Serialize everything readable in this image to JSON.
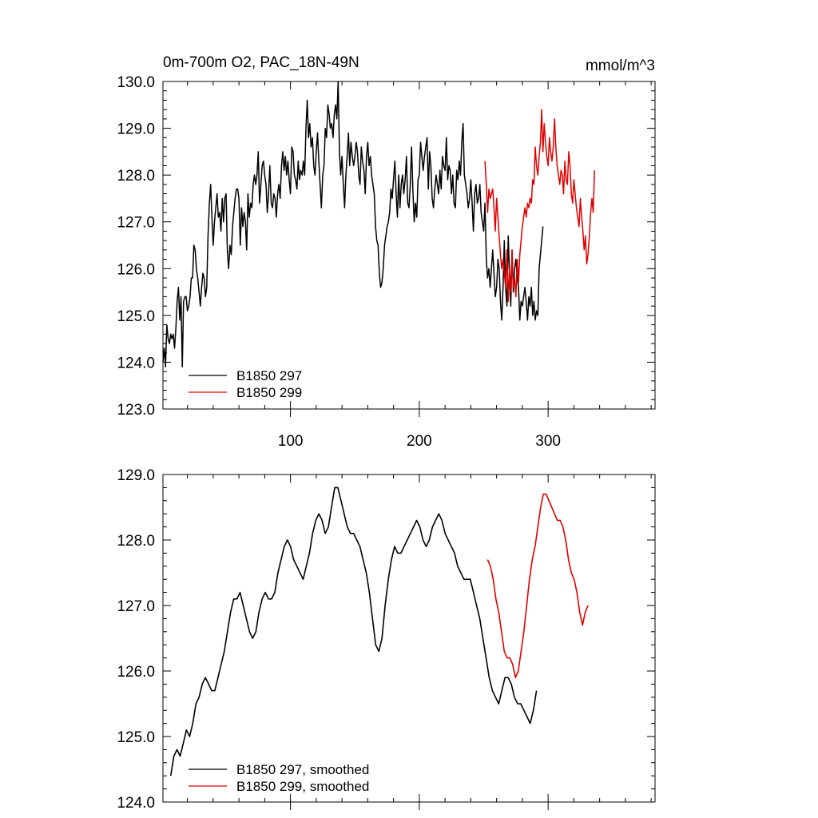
{
  "title": "0m-700m O2, PAC_18N-49N",
  "units": "mmol/m^3",
  "chart_data": [
    {
      "name": "top-panel",
      "type": "line",
      "title": "0m-700m O2, PAC_18N-49N",
      "units_label": "mmol/m^3",
      "xlim": [
        1,
        383
      ],
      "ylim": [
        123,
        130
      ],
      "x_tick_labels": [
        "100",
        "200",
        "300"
      ],
      "y_tick_labels": [
        "123.0",
        "124.0",
        "125.0",
        "126.0",
        "127.0",
        "128.0",
        "129.0",
        "130.0"
      ],
      "series": [
        {
          "name": "B1850 297",
          "color": "#000000",
          "x_start": 1,
          "values": [
            124.0,
            124.3,
            123.9,
            124.8,
            124.5,
            124.4,
            124.6,
            124.5,
            124.6,
            124.3,
            124.7,
            125.3,
            125.6,
            124.9,
            125.4,
            123.9,
            125.3,
            125.4,
            125.4,
            125.1,
            125.2,
            125.4,
            125.8,
            125.8,
            126.5,
            126.4,
            126.0,
            125.8,
            125.5,
            125.2,
            125.6,
            125.9,
            125.8,
            125.4,
            125.6,
            126.7,
            127.4,
            127.8,
            127.1,
            126.5,
            127.0,
            127.3,
            127.6,
            127.1,
            127.2,
            126.8,
            127.5,
            127.0,
            127.5,
            127.6,
            126.4,
            126.0,
            126.5,
            126.3,
            126.9,
            127.2,
            127.5,
            127.7,
            127.7,
            127.5,
            126.5,
            127.3,
            126.9,
            127.2,
            127.0,
            126.4,
            127.6,
            127.1,
            127.4,
            127.3,
            127.8,
            128.0,
            127.8,
            128.0,
            128.5,
            127.4,
            127.8,
            128.2,
            128.3,
            128.0,
            127.8,
            127.2,
            127.6,
            128.2,
            127.4,
            127.3,
            127.6,
            127.5,
            127.1,
            127.6,
            127.8,
            127.5,
            128.2,
            128.5,
            128.1,
            128.4,
            128.0,
            128.3,
            127.9,
            127.6,
            128.6,
            128.5,
            128.0,
            127.9,
            127.7,
            128.3,
            127.9,
            128.1,
            128.0,
            128.3,
            128.0,
            129.0,
            129.6,
            128.8,
            129.1,
            128.6,
            128.8,
            128.2,
            128.0,
            128.5,
            128.9,
            128.3,
            127.8,
            127.3,
            128.0,
            128.2,
            129.0,
            128.8,
            129.5,
            129.3,
            129.0,
            129.1,
            128.8,
            129.3,
            129.5,
            129.2,
            130.0,
            128.5,
            128.0,
            128.4,
            127.8,
            127.3,
            128.0,
            128.4,
            128.9,
            128.2,
            128.7,
            128.4,
            128.2,
            128.4,
            128.7,
            128.5,
            128.0,
            127.8,
            128.6,
            128.3,
            128.1,
            127.6,
            128.4,
            128.7,
            128.2,
            128.4,
            128.0,
            127.8,
            127.6,
            126.9,
            126.6,
            126.5,
            125.9,
            125.6,
            125.7,
            126.0,
            126.5,
            126.7,
            126.9,
            127.0,
            127.2,
            127.7,
            127.5,
            127.9,
            128.3,
            127.6,
            127.1,
            128.0,
            127.3,
            127.8,
            128.0,
            127.6,
            127.9,
            128.4,
            127.4,
            127.3,
            127.8,
            128.6,
            127.7,
            127.0,
            127.4,
            127.1,
            127.9,
            128.0,
            128.7,
            128.4,
            128.1,
            128.4,
            128.6,
            128.8,
            127.7,
            128.5,
            128.2,
            127.5,
            127.3,
            127.7,
            128.0,
            127.8,
            127.6,
            128.1,
            127.7,
            128.4,
            128.2,
            128.1,
            128.8,
            127.9,
            128.2,
            128.1,
            127.6,
            128.0,
            127.4,
            127.3,
            128.1,
            127.9,
            128.3,
            128.0,
            128.7,
            129.1,
            128.0,
            127.8,
            127.6,
            127.3,
            127.5,
            127.9,
            127.4,
            126.8,
            127.6,
            127.8,
            127.4,
            127.5,
            127.8,
            127.2,
            127.0,
            126.8,
            127.4,
            126.2,
            125.8,
            126.0,
            125.6,
            126.0,
            126.4,
            125.9,
            125.4,
            125.6,
            126.2,
            126.0,
            125.3,
            124.9,
            125.6,
            126.6,
            125.6,
            125.2,
            126.7,
            125.9,
            125.2,
            126.4,
            125.5,
            126.0,
            126.2,
            125.8,
            125.6,
            124.9,
            125.3,
            125.2,
            125.4,
            125.6,
            125.3,
            124.9,
            125.4,
            125.2,
            125.6,
            125.0,
            125.3,
            124.9,
            125.1,
            125.0,
            126.0,
            126.3,
            126.6,
            126.9
          ],
          "smoothed": [
            124.4,
            124.7,
            124.8,
            124.7,
            124.9,
            125.1,
            125.0,
            125.2,
            125.5,
            125.6,
            125.8,
            125.9,
            125.8,
            125.7,
            125.7,
            125.9,
            126.1,
            126.3,
            126.6,
            126.9,
            127.1,
            127.1,
            127.2,
            127.0,
            126.8,
            126.6,
            126.5,
            126.6,
            126.9,
            127.1,
            127.2,
            127.1,
            127.1,
            127.2,
            127.5,
            127.7,
            127.9,
            128.0,
            127.9,
            127.7,
            127.6,
            127.5,
            127.4,
            127.6,
            127.8,
            128.1,
            128.3,
            128.4,
            128.3,
            128.1,
            128.2,
            128.5,
            128.8,
            128.8,
            128.6,
            128.4,
            128.2,
            128.1,
            128.1,
            128.0,
            127.9,
            127.7,
            127.5,
            127.2,
            126.8,
            126.4,
            126.3,
            126.5,
            127.0,
            127.4,
            127.7,
            127.9,
            127.8,
            127.8,
            127.9,
            128.0,
            128.1,
            128.2,
            128.3,
            128.2,
            128.0,
            127.9,
            128.0,
            128.2,
            128.3,
            128.4,
            128.3,
            128.1,
            128.0,
            127.9,
            127.8,
            127.6,
            127.5,
            127.4,
            127.4,
            127.4,
            127.2,
            127.0,
            126.8,
            126.5,
            126.2,
            125.9,
            125.7,
            125.6,
            125.5,
            125.7,
            125.9,
            125.9,
            125.8,
            125.6,
            125.5,
            125.5,
            125.4,
            125.3,
            125.2,
            125.4,
            125.7
          ],
          "smoothed_x_start": 7
        },
        {
          "name": "B1850 299",
          "color": "#e00000",
          "x_start": 251,
          "values": [
            128.3,
            127.8,
            127.2,
            127.7,
            127.5,
            127.6,
            127.7,
            127.3,
            126.8,
            127.5,
            127.1,
            126.7,
            126.3,
            126.0,
            126.2,
            125.9,
            125.6,
            126.4,
            125.3,
            126.0,
            125.5,
            126.4,
            125.6,
            125.8,
            125.4,
            126.2,
            125.7,
            126.3,
            126.6,
            126.9,
            127.1,
            127.3,
            127.1,
            127.4,
            127.3,
            127.5,
            127.4,
            127.9,
            127.8,
            128.6,
            128.2,
            128.0,
            128.4,
            128.7,
            129.4,
            128.5,
            129.1,
            128.7,
            128.4,
            128.2,
            128.8,
            128.5,
            128.3,
            128.6,
            129.2,
            128.6,
            128.2,
            128.0,
            127.8,
            128.1,
            128.0,
            127.6,
            128.3,
            127.9,
            127.8,
            128.5,
            128.2,
            127.6,
            127.4,
            127.9,
            127.6,
            127.3,
            127.1,
            126.9,
            127.5,
            127.1,
            126.8,
            126.4,
            126.7,
            126.1,
            126.3,
            126.7,
            127.2,
            127.5,
            127.2,
            128.1
          ],
          "smoothed": [
            127.7,
            127.6,
            127.4,
            127.1,
            126.9,
            126.6,
            126.3,
            126.2,
            126.2,
            126.1,
            125.9,
            126.0,
            126.3,
            126.6,
            127.0,
            127.4,
            127.7,
            127.9,
            128.2,
            128.5,
            128.7,
            128.7,
            128.6,
            128.5,
            128.4,
            128.3,
            128.3,
            128.2,
            128.0,
            127.7,
            127.5,
            127.4,
            127.2,
            126.9,
            126.7,
            126.9,
            127.0
          ],
          "smoothed_x_start": 253
        }
      ],
      "legend": [
        "B1850 297",
        "B1850 299"
      ]
    },
    {
      "name": "bottom-panel",
      "type": "line",
      "xlim": [
        1,
        383
      ],
      "ylim": [
        124,
        129
      ],
      "y_tick_labels": [
        "124.0",
        "125.0",
        "126.0",
        "127.0",
        "128.0",
        "129.0"
      ],
      "legend": [
        "B1850 297, smoothed",
        "B1850 299, smoothed"
      ]
    }
  ]
}
